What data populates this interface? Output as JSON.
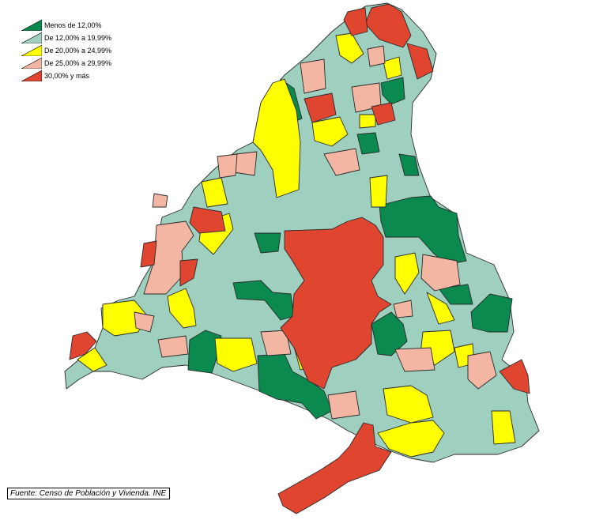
{
  "legend": {
    "items": [
      {
        "label": "Menos de  12,00%",
        "color": "#0a8a4f"
      },
      {
        "label": "De 12,00% a 19,99%",
        "color": "#9fcfbf"
      },
      {
        "label": "De 20,00% a 24,99%",
        "color": "#ffff00"
      },
      {
        "label": "De 25,00% a 29,99%",
        "color": "#f2b6a3"
      },
      {
        "label": "30,00% y más",
        "color": "#e04530"
      }
    ]
  },
  "source": "Fuente: Censo de Población y Vivienda. INE",
  "colors": {
    "outline": "#2a2a2a",
    "background": "#ffffff"
  }
}
